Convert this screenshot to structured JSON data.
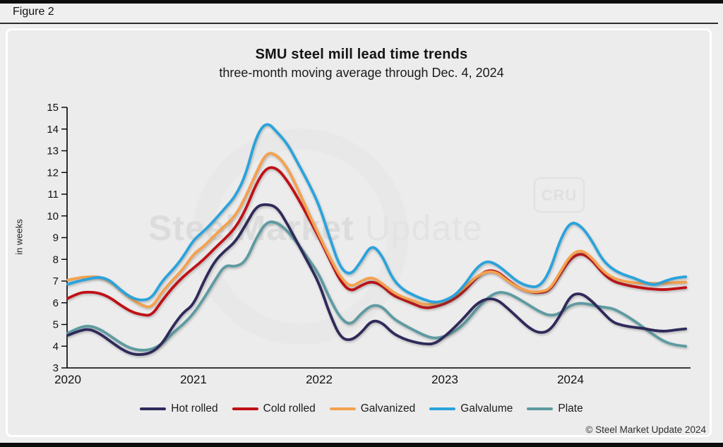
{
  "figure_label": "Figure 2",
  "footer": {
    "copyright": "© Steel Market Update 2024"
  },
  "watermark": {
    "bold_text": "SteelMarket",
    "light_text": " Update",
    "badge": "CRU"
  },
  "chart_data": {
    "type": "line",
    "title": "SMU steel mill lead time trends",
    "subtitle": "three-month moving average through Dec. 4, 2024",
    "ylabel": "in weeks",
    "ylim": [
      3,
      15
    ],
    "ytick_step": 1,
    "grid": false,
    "legend_position": "bottom",
    "x_unit": "month",
    "x_range": "Jan 2020 – Dec 2024",
    "xticks": [
      "2020",
      "2021",
      "2022",
      "2023",
      "2024"
    ],
    "draw_order": [
      4,
      0,
      1,
      2,
      3
    ],
    "series": [
      {
        "name": "Hot rolled",
        "color": "#2e2a5a",
        "values": [
          4.5,
          4.7,
          4.8,
          4.6,
          4.25,
          3.9,
          3.65,
          3.6,
          3.7,
          4.1,
          4.9,
          5.55,
          5.9,
          7.0,
          7.9,
          8.4,
          8.8,
          9.6,
          10.45,
          10.55,
          10.4,
          9.6,
          8.7,
          7.8,
          6.9,
          5.5,
          4.4,
          4.25,
          4.6,
          5.2,
          5.1,
          4.6,
          4.35,
          4.2,
          4.1,
          4.1,
          4.45,
          4.9,
          5.4,
          5.95,
          6.2,
          6.15,
          5.75,
          5.3,
          4.85,
          4.6,
          4.7,
          5.4,
          6.35,
          6.45,
          6.1,
          5.6,
          5.1,
          4.95,
          4.87,
          4.82,
          4.72,
          4.68,
          4.75,
          4.8
        ]
      },
      {
        "name": "Cold rolled",
        "color": "#c01015",
        "values": [
          6.2,
          6.45,
          6.5,
          6.45,
          6.25,
          5.9,
          5.6,
          5.45,
          5.4,
          6.1,
          6.7,
          7.2,
          7.6,
          8.0,
          8.5,
          8.95,
          9.45,
          10.3,
          11.5,
          12.25,
          12.2,
          11.6,
          10.8,
          9.9,
          9.0,
          8.0,
          7.0,
          6.5,
          6.8,
          7.0,
          6.8,
          6.35,
          6.15,
          5.95,
          5.75,
          5.8,
          5.95,
          6.2,
          6.6,
          7.15,
          7.5,
          7.45,
          7.05,
          6.7,
          6.5,
          6.45,
          6.55,
          7.3,
          8.05,
          8.3,
          8.0,
          7.4,
          7.0,
          6.85,
          6.75,
          6.67,
          6.62,
          6.6,
          6.65,
          6.7
        ]
      },
      {
        "name": "Galvanized",
        "color": "#f4a14e",
        "values": [
          7.05,
          7.15,
          7.2,
          7.2,
          7.0,
          6.6,
          6.2,
          5.9,
          5.75,
          6.5,
          7.05,
          7.55,
          8.25,
          8.6,
          9.1,
          9.55,
          10.0,
          10.9,
          12.0,
          12.95,
          12.8,
          12.2,
          11.2,
          10.1,
          9.1,
          8.1,
          7.2,
          6.7,
          7.0,
          7.2,
          6.9,
          6.5,
          6.25,
          6.1,
          5.9,
          5.95,
          6.1,
          6.35,
          6.75,
          7.2,
          7.45,
          7.4,
          7.0,
          6.7,
          6.5,
          6.5,
          6.6,
          7.4,
          8.2,
          8.45,
          8.1,
          7.5,
          7.15,
          7.0,
          6.92,
          6.9,
          6.9,
          6.9,
          6.93,
          6.95
        ]
      },
      {
        "name": "Galvalume",
        "color": "#2aa3dc",
        "values": [
          6.85,
          7.0,
          7.1,
          7.2,
          7.05,
          6.6,
          6.25,
          6.1,
          6.2,
          7.0,
          7.5,
          8.1,
          8.9,
          9.3,
          9.8,
          10.35,
          10.9,
          11.9,
          13.7,
          14.35,
          13.85,
          13.3,
          12.4,
          11.5,
          10.5,
          9.0,
          7.6,
          7.25,
          7.9,
          8.7,
          8.2,
          7.1,
          6.6,
          6.35,
          6.15,
          6.0,
          6.1,
          6.35,
          6.9,
          7.6,
          7.95,
          7.75,
          7.35,
          6.95,
          6.75,
          6.72,
          7.4,
          8.9,
          9.75,
          9.55,
          8.9,
          8.0,
          7.55,
          7.3,
          7.15,
          6.95,
          6.8,
          7.0,
          7.15,
          7.2
        ]
      },
      {
        "name": "Plate",
        "color": "#5d9ba1",
        "values": [
          4.6,
          4.85,
          4.95,
          4.8,
          4.5,
          4.15,
          3.9,
          3.8,
          3.85,
          4.1,
          4.6,
          5.0,
          5.5,
          6.2,
          7.0,
          7.75,
          7.65,
          7.9,
          9.0,
          9.75,
          9.7,
          9.3,
          8.7,
          8.0,
          7.3,
          6.2,
          5.3,
          4.95,
          5.5,
          5.9,
          5.85,
          5.3,
          5.0,
          4.75,
          4.5,
          4.35,
          4.45,
          4.7,
          5.1,
          5.7,
          6.2,
          6.5,
          6.45,
          6.2,
          5.9,
          5.6,
          5.4,
          5.5,
          5.9,
          6.0,
          5.9,
          5.8,
          5.75,
          5.5,
          5.2,
          4.85,
          4.5,
          4.2,
          4.05,
          4.0
        ]
      }
    ]
  }
}
